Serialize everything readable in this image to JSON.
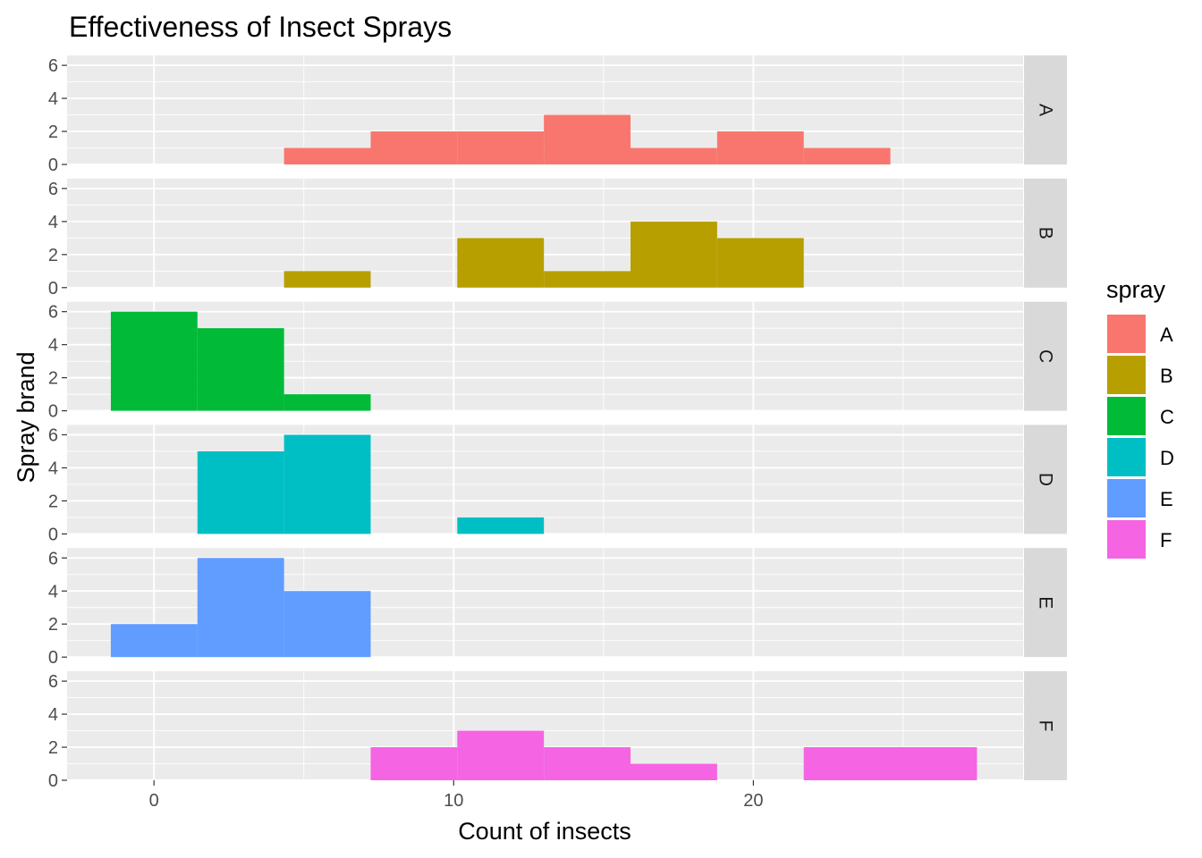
{
  "chart_data": {
    "type": "bar",
    "title": "Effectiveness of Insect Sprays",
    "xlabel": "Count of insects",
    "ylabel": "Spray brand",
    "xlim": [
      -2.9,
      29
    ],
    "ylim": [
      0,
      6.6
    ],
    "x_ticks": [
      0,
      10,
      20
    ],
    "y_ticks": [
      0,
      2,
      4,
      6
    ],
    "bin_width": 2.89,
    "grid": true,
    "legend": {
      "title": "spray",
      "position": "right"
    },
    "facets": [
      {
        "name": "A",
        "color": "#F8766D",
        "bins": [
          {
            "start": 4.34,
            "count": 1
          },
          {
            "start": 7.23,
            "count": 2
          },
          {
            "start": 10.12,
            "count": 2
          },
          {
            "start": 13.01,
            "count": 3
          },
          {
            "start": 15.9,
            "count": 1
          },
          {
            "start": 18.79,
            "count": 2
          },
          {
            "start": 21.68,
            "count": 1
          }
        ]
      },
      {
        "name": "B",
        "color": "#B79F00",
        "bins": [
          {
            "start": 4.34,
            "count": 1
          },
          {
            "start": 10.12,
            "count": 3
          },
          {
            "start": 13.01,
            "count": 1
          },
          {
            "start": 15.9,
            "count": 4
          },
          {
            "start": 18.79,
            "count": 3
          }
        ]
      },
      {
        "name": "C",
        "color": "#00BA38",
        "bins": [
          {
            "start": -1.44,
            "count": 6
          },
          {
            "start": 1.45,
            "count": 5
          },
          {
            "start": 4.34,
            "count": 1
          }
        ]
      },
      {
        "name": "D",
        "color": "#00BFC4",
        "bins": [
          {
            "start": 1.45,
            "count": 5
          },
          {
            "start": 4.34,
            "count": 6
          },
          {
            "start": 10.12,
            "count": 1
          }
        ]
      },
      {
        "name": "E",
        "color": "#619CFF",
        "bins": [
          {
            "start": -1.44,
            "count": 2
          },
          {
            "start": 1.45,
            "count": 6
          },
          {
            "start": 4.34,
            "count": 4
          }
        ]
      },
      {
        "name": "F",
        "color": "#F564E3",
        "bins": [
          {
            "start": 7.23,
            "count": 2
          },
          {
            "start": 10.12,
            "count": 3
          },
          {
            "start": 13.01,
            "count": 2
          },
          {
            "start": 15.9,
            "count": 1
          },
          {
            "start": 21.68,
            "count": 2
          },
          {
            "start": 24.57,
            "count": 2
          }
        ]
      }
    ]
  }
}
